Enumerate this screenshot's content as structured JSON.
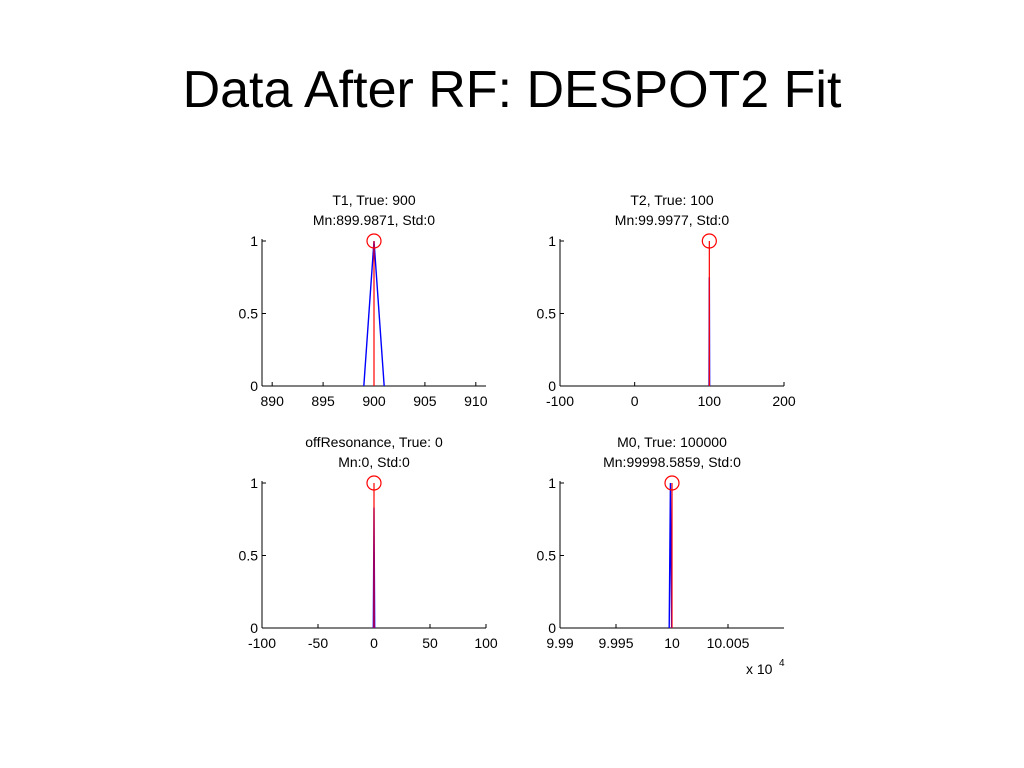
{
  "slide": {
    "title": "Data After RF: DESPOT2 Fit"
  },
  "colors": {
    "fit": "#0000ff",
    "truth": "#ff0000",
    "axis": "#000000"
  },
  "chart_data": [
    {
      "type": "line",
      "title_lines": [
        "T1, True: 900",
        "Mn:899.9871, Std:0"
      ],
      "xlim": [
        889,
        911
      ],
      "ylim": [
        0,
        1
      ],
      "xticks": [
        890,
        895,
        900,
        905,
        910
      ],
      "xtick_labels": [
        "890",
        "895",
        "900",
        "905",
        "910"
      ],
      "yticks": [
        0,
        0.5,
        1
      ],
      "ytick_labels": [
        "0",
        "0.5",
        "1"
      ],
      "exponent_label": "",
      "series": [
        {
          "role": "fit",
          "x": [
            899,
            900,
            901
          ],
          "y": [
            0,
            1,
            0
          ]
        },
        {
          "role": "truth",
          "x": [
            900,
            900
          ],
          "y": [
            0,
            1
          ]
        }
      ],
      "marker": {
        "x": 900,
        "y": 1
      }
    },
    {
      "type": "line",
      "title_lines": [
        "T2, True: 100",
        "Mn:99.9977, Std:0"
      ],
      "xlim": [
        -100,
        200
      ],
      "ylim": [
        0,
        1
      ],
      "xticks": [
        -100,
        0,
        100,
        200
      ],
      "xtick_labels": [
        "-100",
        "0",
        "100",
        "200"
      ],
      "yticks": [
        0,
        0.5,
        1
      ],
      "ytick_labels": [
        "0",
        "0.5",
        "1"
      ],
      "exponent_label": "",
      "series": [
        {
          "role": "fit",
          "x": [
            99.6,
            100,
            100.4
          ],
          "y": [
            0,
            0.75,
            0
          ]
        },
        {
          "role": "truth",
          "x": [
            100,
            100
          ],
          "y": [
            0,
            1
          ]
        }
      ],
      "marker": {
        "x": 100,
        "y": 1
      }
    },
    {
      "type": "line",
      "title_lines": [
        "offResonance, True: 0",
        "Mn:0, Std:0"
      ],
      "xlim": [
        -100,
        100
      ],
      "ylim": [
        0,
        1
      ],
      "xticks": [
        -100,
        -50,
        0,
        50,
        100
      ],
      "xtick_labels": [
        "-100",
        "-50",
        "0",
        "50",
        "100"
      ],
      "yticks": [
        0,
        0.5,
        1
      ],
      "ytick_labels": [
        "0",
        "0.5",
        "1"
      ],
      "exponent_label": "",
      "series": [
        {
          "role": "fit",
          "x": [
            -0.6,
            0,
            0.6
          ],
          "y": [
            0,
            0.83,
            0
          ]
        },
        {
          "role": "truth",
          "x": [
            0,
            0
          ],
          "y": [
            0,
            1
          ]
        }
      ],
      "marker": {
        "x": 0,
        "y": 1
      }
    },
    {
      "type": "line",
      "title_lines": [
        "M0, True: 100000",
        "Mn:99998.5859, Std:0"
      ],
      "xlim": [
        9.99,
        10.01
      ],
      "ylim": [
        0,
        1
      ],
      "xticks": [
        9.99,
        9.995,
        10,
        10.005
      ],
      "xtick_labels": [
        "9.99",
        "9.995",
        "10",
        "10.005"
      ],
      "yticks": [
        0,
        0.5,
        1
      ],
      "ytick_labels": [
        "0",
        "0.5",
        "1"
      ],
      "exponent_label": "x 10",
      "exponent_power": "4",
      "series": [
        {
          "role": "fit",
          "x": [
            9.99975,
            9.99986,
            9.99997
          ],
          "y": [
            0,
            1,
            0
          ]
        },
        {
          "role": "truth",
          "x": [
            10,
            10
          ],
          "y": [
            0,
            1
          ]
        }
      ],
      "marker": {
        "x": 10,
        "y": 1
      }
    }
  ]
}
